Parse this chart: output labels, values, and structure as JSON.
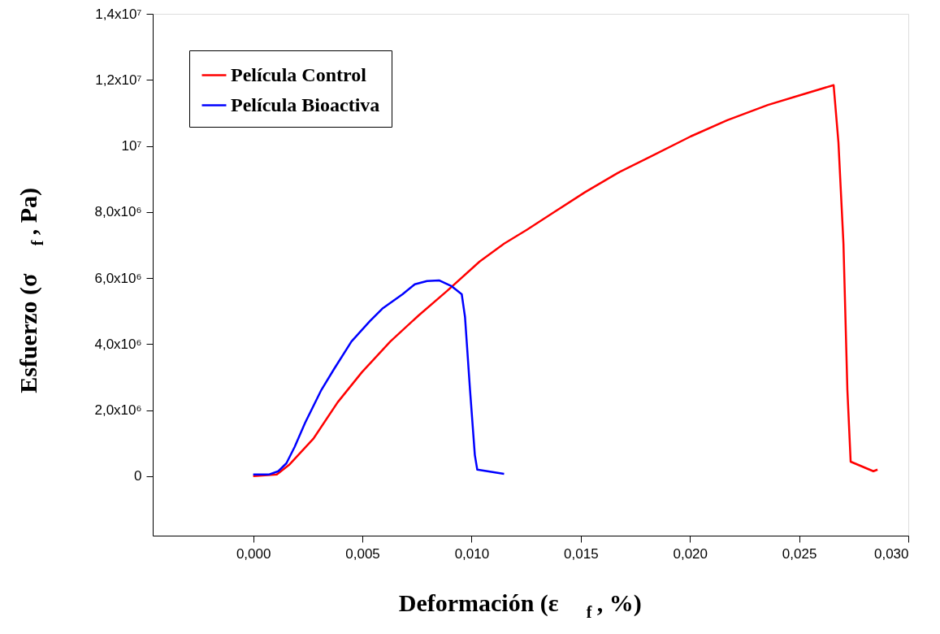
{
  "chart_data": {
    "type": "line",
    "xlabel": "Deformación (ε$_{f}$ , %)",
    "ylabel": "Esfuerzo (σ$_{f}$ , Pa)",
    "xlim": [
      -0.0046,
      0.03
    ],
    "ylim": [
      -1800000,
      14000000
    ],
    "xticks": [
      {
        "value": 0,
        "label": "0,000"
      },
      {
        "value": 0.005,
        "label": "0,005"
      },
      {
        "value": 0.01,
        "label": "0,010"
      },
      {
        "value": 0.015,
        "label": "0,015"
      },
      {
        "value": 0.02,
        "label": "0,020"
      },
      {
        "value": 0.025,
        "label": "0,025"
      },
      {
        "value": 0.03,
        "label": "0,030"
      }
    ],
    "yticks": [
      0,
      {
        "value": 2000000,
        "label": "2,0x10⁶"
      },
      {
        "value": 4000000,
        "label": "4,0x10⁶"
      },
      {
        "value": 6000000,
        "label": "6,0x10⁶"
      },
      {
        "value": 8000000,
        "label": "8,0x10⁶"
      },
      {
        "value": 10000000,
        "label": "10⁷"
      },
      {
        "value": 12000000,
        "label": "1,2x10⁷"
      },
      {
        "value": 14000000,
        "label": "1,4x10⁷"
      }
    ],
    "grid": false,
    "legend": "top left",
    "marker": "none",
    "line_style": "solid",
    "series": [
      {
        "name": "Película Control",
        "color": "#ff0000",
        "x": [
          0,
          0.00108,
          0.00164,
          0.00275,
          0.00387,
          0.00498,
          0.00628,
          0.00758,
          0.00888,
          0.01037,
          0.01149,
          0.01253,
          0.01372,
          0.0152,
          0.01669,
          0.01818,
          0.02004,
          0.02171,
          0.02357,
          0.02506,
          0.02658,
          0.0268,
          0.02703,
          0.02721,
          0.02736,
          0.0284,
          0.02859
        ],
        "values": [
          0,
          50000,
          340000,
          1130000,
          2240000,
          3150000,
          4080000,
          4870000,
          5610000,
          6500000,
          7040000,
          7460000,
          7970000,
          8600000,
          9180000,
          9670000,
          10290000,
          10780000,
          11240000,
          11540000,
          11840000,
          10110000,
          7040000,
          2610000,
          440000,
          150000,
          200000
        ]
      },
      {
        "name": "Película Bioactiva",
        "color": "#0000ff",
        "x": [
          0,
          0.00071,
          0.00115,
          0.00152,
          0.0019,
          0.00238,
          0.00312,
          0.00368,
          0.0045,
          0.00535,
          0.00591,
          0.00684,
          0.0074,
          0.00796,
          0.00851,
          0.00907,
          0.00955,
          0.0097,
          0.00993,
          0.01015,
          0.01026,
          0.01149
        ],
        "values": [
          50000,
          50000,
          150000,
          390000,
          890000,
          1620000,
          2610000,
          3220000,
          4080000,
          4700000,
          5070000,
          5510000,
          5810000,
          5910000,
          5930000,
          5760000,
          5510000,
          4820000,
          2610000,
          640000,
          200000,
          70000
        ]
      }
    ]
  }
}
